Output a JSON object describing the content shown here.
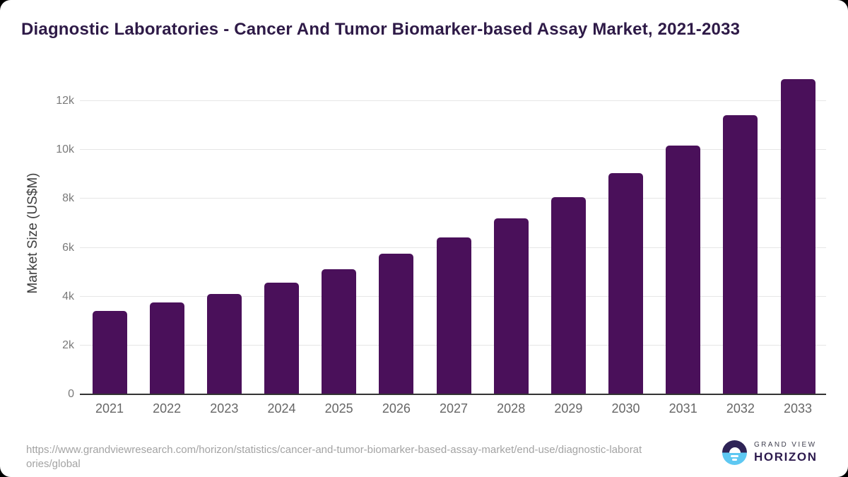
{
  "chart_data": {
    "type": "bar",
    "title": "Diagnostic Laboratories - Cancer And Tumor Biomarker-based Assay Market, 2021-2033",
    "xlabel": "",
    "ylabel": "Market Size (US$M)",
    "categories": [
      "2021",
      "2022",
      "2023",
      "2024",
      "2025",
      "2026",
      "2027",
      "2028",
      "2029",
      "2030",
      "2031",
      "2032",
      "2033"
    ],
    "values": [
      3400,
      3760,
      4110,
      4580,
      5130,
      5750,
      6410,
      7200,
      8070,
      9040,
      10170,
      11430,
      12910
    ],
    "ylim": [
      0,
      13100
    ],
    "yticks": [
      {
        "value": 0,
        "label": "0"
      },
      {
        "value": 2000,
        "label": "2k"
      },
      {
        "value": 4000,
        "label": "4k"
      },
      {
        "value": 6000,
        "label": "6k"
      },
      {
        "value": 8000,
        "label": "8k"
      },
      {
        "value": 10000,
        "label": "10k"
      },
      {
        "value": 12000,
        "label": "12k"
      }
    ],
    "grid": "horizontal",
    "legend_position": "none",
    "bar_color": "#4a105a"
  },
  "colors": {
    "title_text": "#2e1a47",
    "bar_fill": "#4a105a",
    "gridline": "#e6e6e6",
    "axis_line": "#333333",
    "ytick_text": "#7a7a7a",
    "xtick_text": "#666666",
    "source_text": "#a3a3a3",
    "logo_purple": "#2e2356",
    "logo_blue": "#5ec8f2",
    "logo_wordmark": "#2d1b4e"
  },
  "footer": {
    "source_url": "https://www.grandviewresearch.com/horizon/statistics/cancer-and-tumor-biomarker-based-assay-market/end-use/diagnostic-laboratories/global",
    "source_url_lines": [
      "https://www.grandviewresearch.com/horizon/statistics/cancer-and-tumor-biomarker-based-assay-market/end-use/diagnostic-laborat",
      "ories/global"
    ],
    "logo": {
      "brand_top": "GRAND VIEW",
      "brand_bottom": "HORIZON"
    }
  }
}
